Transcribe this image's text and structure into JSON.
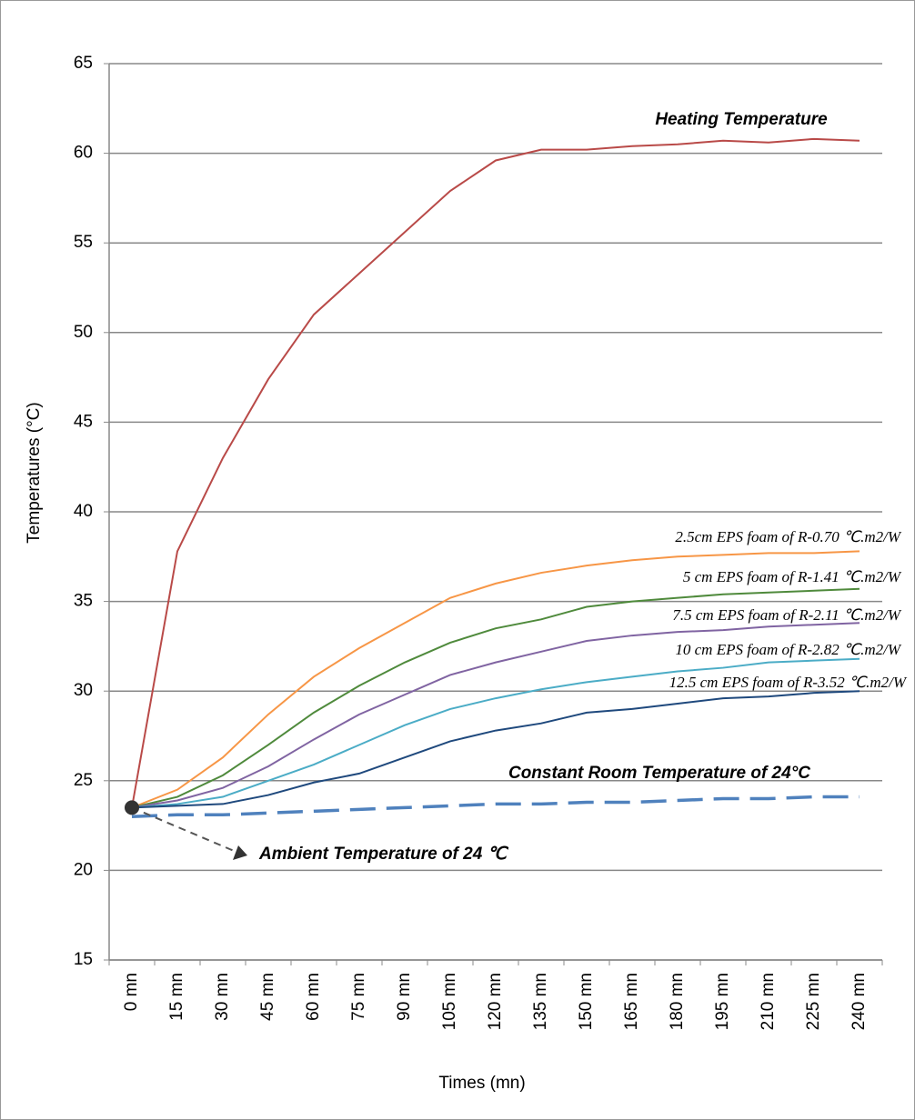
{
  "chart_data": {
    "type": "line",
    "y_label": "Temperatures (°C)",
    "x_label": "Times (mn)",
    "categories": [
      "0 mn",
      "15 mn",
      "30 mn",
      "45 mn",
      "60 mn",
      "75 mn",
      "90 mn",
      "105 mn",
      "120 mn",
      "135 mn",
      "150 mn",
      "165 mn",
      "180 mn",
      "195 mn",
      "210 mn",
      "225 mn",
      "240 mn"
    ],
    "ylim": [
      15,
      65
    ],
    "yticks": [
      15,
      20,
      25,
      30,
      35,
      40,
      45,
      50,
      55,
      60,
      65
    ],
    "grid": true,
    "series": [
      {
        "name": "Heating Temperature",
        "color": "#b94a48",
        "values": [
          23.5,
          37.8,
          43.0,
          47.4,
          51.0,
          53.3,
          55.6,
          57.9,
          59.6,
          60.2,
          60.2,
          60.4,
          60.5,
          60.7,
          60.6,
          60.8,
          60.7
        ]
      },
      {
        "name": "2.5cm EPS foam of R-0.70 ℃.m2/W",
        "color": "#f79646",
        "values": [
          23.5,
          24.5,
          26.3,
          28.7,
          30.8,
          32.4,
          33.8,
          35.2,
          36.0,
          36.6,
          37.0,
          37.3,
          37.5,
          37.6,
          37.7,
          37.7,
          37.8
        ]
      },
      {
        "name": "5 cm EPS foam of R-1.41 ℃.m2/W",
        "color": "#4f8a3c",
        "values": [
          23.5,
          24.1,
          25.3,
          27.0,
          28.8,
          30.3,
          31.6,
          32.7,
          33.5,
          34.0,
          34.7,
          35.0,
          35.2,
          35.4,
          35.5,
          35.6,
          35.7
        ]
      },
      {
        "name": "7.5 cm EPS foam of R-2.11 ℃.m2/W",
        "color": "#8064a2",
        "values": [
          23.5,
          23.9,
          24.6,
          25.8,
          27.3,
          28.7,
          29.8,
          30.9,
          31.6,
          32.2,
          32.8,
          33.1,
          33.3,
          33.4,
          33.6,
          33.7,
          33.8
        ]
      },
      {
        "name": "10 cm EPS foam of R-2.82 ℃.m2/W",
        "color": "#4bacc6",
        "values": [
          23.5,
          23.7,
          24.1,
          25.0,
          25.9,
          27.0,
          28.1,
          29.0,
          29.6,
          30.1,
          30.5,
          30.8,
          31.1,
          31.3,
          31.6,
          31.7,
          31.8
        ]
      },
      {
        "name": "12.5 cm EPS foam of R-3.52 ℃.m2/W",
        "color": "#1f497d",
        "values": [
          23.5,
          23.6,
          23.7,
          24.2,
          24.9,
          25.4,
          26.3,
          27.2,
          27.8,
          28.2,
          28.8,
          29.0,
          29.3,
          29.6,
          29.7,
          29.9,
          30.0
        ]
      },
      {
        "name": "Constant Room Temperature of 24°C",
        "color": "#4f81bd",
        "dashed": true,
        "values": [
          23.0,
          23.1,
          23.1,
          23.2,
          23.3,
          23.4,
          23.5,
          23.6,
          23.7,
          23.7,
          23.8,
          23.8,
          23.9,
          24.0,
          24.0,
          24.1,
          24.1
        ]
      }
    ],
    "annotations": [
      {
        "text": "Ambient Temperature of 24 ℃"
      }
    ]
  }
}
